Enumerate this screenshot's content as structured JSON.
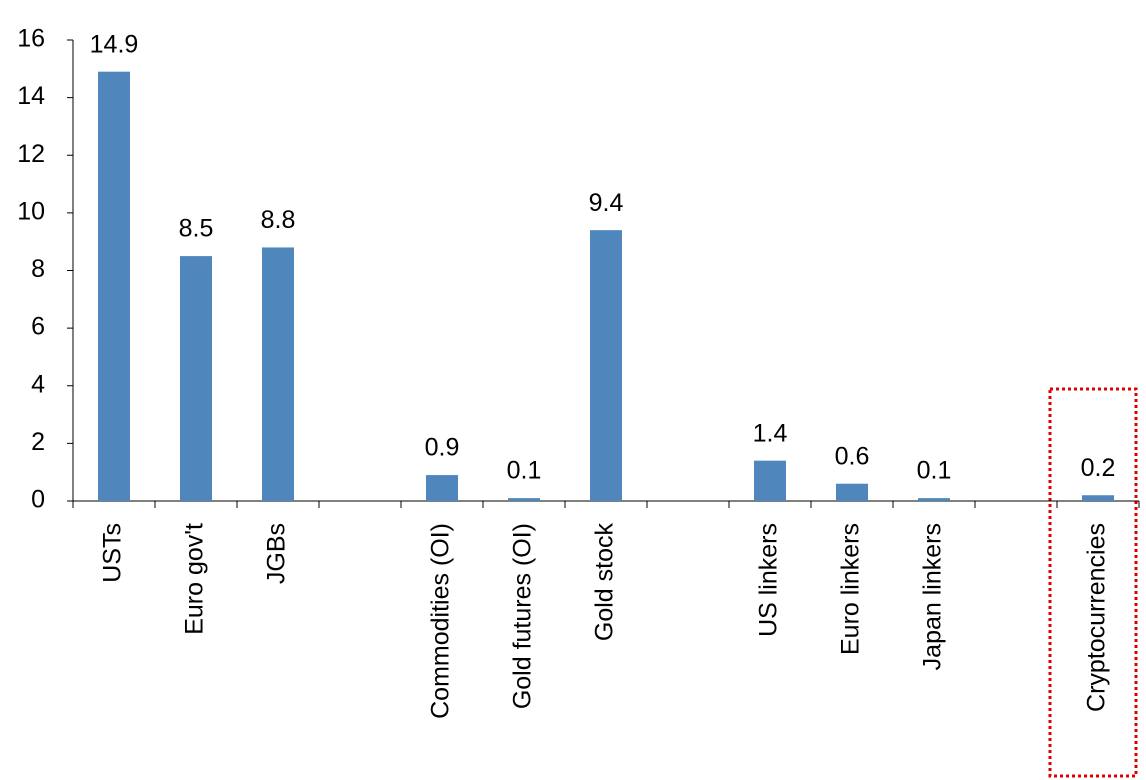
{
  "chart_data": {
    "type": "bar",
    "categories": [
      "USTs",
      "Euro gov't",
      "JGBs",
      null,
      "Commodities (OI)",
      "Gold futures (OI)",
      "Gold stock",
      null,
      "US linkers",
      "Euro linkers",
      "Japan linkers",
      null,
      "Cryptocurrencies"
    ],
    "values": [
      14.9,
      8.5,
      8.8,
      null,
      0.9,
      0.1,
      9.4,
      null,
      1.4,
      0.6,
      0.1,
      null,
      0.2
    ],
    "color": "#4f87bd",
    "ylim": [
      0,
      16
    ],
    "yticks": [
      0,
      2,
      4,
      6,
      8,
      10,
      12,
      14,
      16
    ]
  }
}
